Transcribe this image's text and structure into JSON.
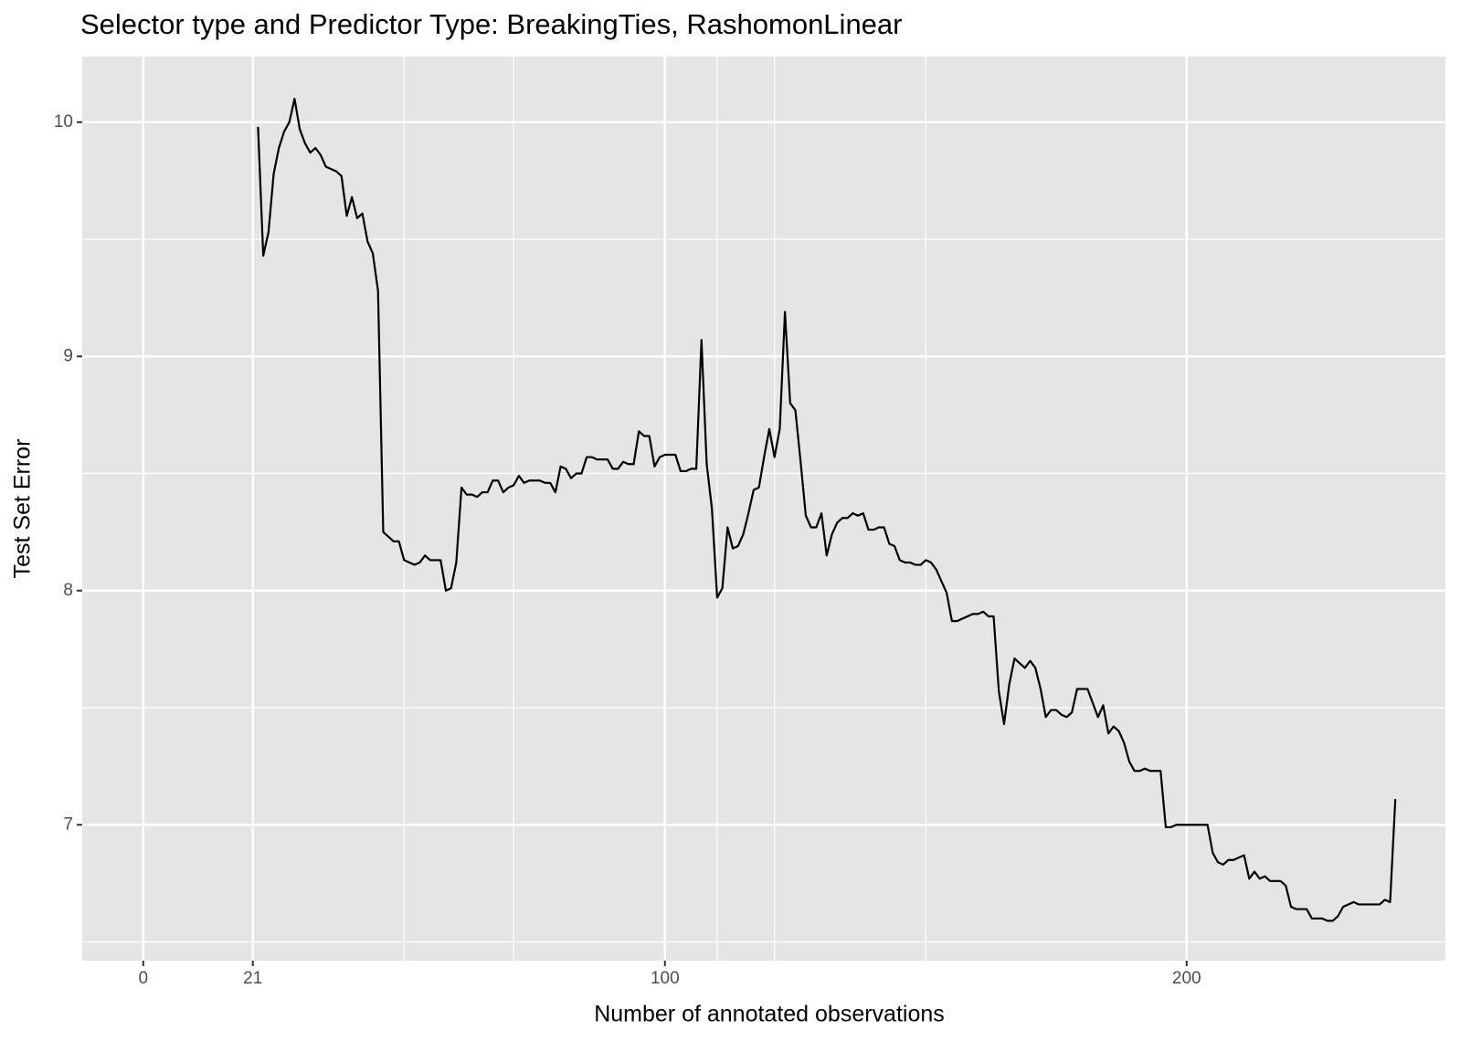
{
  "chart_data": {
    "type": "line",
    "title": "Selector type and Predictor Type: BreakingTies, RashomonLinear",
    "x_label": "Number of annotated observations",
    "y_label": "Test Set Error",
    "color": "#000000",
    "grid": true,
    "xlim": [
      -11.7,
      249.6
    ],
    "ylim": [
      6.42,
      10.28
    ],
    "xticks": [
      0,
      21,
      100,
      200
    ],
    "x_minor_grid": [
      50,
      71,
      110,
      121,
      150
    ],
    "yticks": [
      7,
      8,
      9,
      10
    ],
    "y_minor_grid": [
      6.5,
      7.5,
      8.5,
      9.5
    ],
    "x": [
      22,
      23,
      24,
      25,
      26,
      27,
      28,
      29,
      30,
      31,
      32,
      33,
      34,
      35,
      36,
      37,
      38,
      39,
      40,
      41,
      42,
      43,
      44,
      45,
      46,
      47,
      48,
      49,
      50,
      51,
      52,
      53,
      54,
      55,
      56,
      57,
      58,
      59,
      60,
      61,
      62,
      63,
      64,
      65,
      66,
      67,
      68,
      69,
      70,
      71,
      72,
      73,
      74,
      75,
      76,
      77,
      78,
      79,
      80,
      81,
      82,
      83,
      84,
      85,
      86,
      87,
      88,
      89,
      90,
      91,
      92,
      93,
      94,
      95,
      96,
      97,
      98,
      99,
      100,
      101,
      102,
      103,
      104,
      105,
      106,
      107,
      108,
      109,
      110,
      111,
      112,
      113,
      114,
      115,
      116,
      117,
      118,
      119,
      120,
      121,
      122,
      123,
      124,
      125,
      126,
      127,
      128,
      129,
      130,
      131,
      132,
      133,
      134,
      135,
      136,
      137,
      138,
      139,
      140,
      141,
      142,
      143,
      144,
      145,
      146,
      147,
      148,
      149,
      150,
      151,
      152,
      153,
      154,
      155,
      156,
      157,
      158,
      159,
      160,
      161,
      162,
      163,
      164,
      165,
      166,
      167,
      168,
      169,
      170,
      171,
      172,
      173,
      174,
      175,
      176,
      177,
      178,
      179,
      180,
      181,
      182,
      183,
      184,
      185,
      186,
      187,
      188,
      189,
      190,
      191,
      192,
      193,
      194,
      195,
      196,
      197,
      198,
      199,
      200,
      201,
      202,
      203,
      204,
      205,
      206,
      207,
      208,
      209,
      210,
      211,
      212,
      213,
      214,
      215,
      216,
      217,
      218,
      219,
      220,
      221,
      222,
      223,
      224,
      225,
      226,
      227,
      228,
      229,
      230,
      231,
      232,
      233,
      234,
      235,
      236,
      237,
      238,
      239,
      240
    ],
    "values": [
      9.98,
      9.43,
      9.53,
      9.78,
      9.89,
      9.96,
      10.0,
      10.1,
      9.97,
      9.91,
      9.87,
      9.89,
      9.86,
      9.81,
      9.8,
      9.79,
      9.77,
      9.6,
      9.68,
      9.59,
      9.61,
      9.49,
      9.44,
      9.28,
      8.25,
      8.23,
      8.21,
      8.21,
      8.13,
      8.12,
      8.11,
      8.12,
      8.15,
      8.13,
      8.13,
      8.13,
      8,
      8.01,
      8.12,
      8.44,
      8.41,
      8.41,
      8.4,
      8.42,
      8.42,
      8.47,
      8.47,
      8.42,
      8.44,
      8.45,
      8.49,
      8.46,
      8.47,
      8.47,
      8.47,
      8.46,
      8.46,
      8.42,
      8.53,
      8.52,
      8.48,
      8.5,
      8.5,
      8.57,
      8.57,
      8.56,
      8.56,
      8.56,
      8.52,
      8.52,
      8.55,
      8.54,
      8.54,
      8.68,
      8.66,
      8.66,
      8.53,
      8.57,
      8.58,
      8.58,
      8.58,
      8.51,
      8.51,
      8.52,
      8.52,
      9.07,
      8.54,
      8.35,
      7.97,
      8.01,
      8.27,
      8.18,
      8.19,
      8.24,
      8.33,
      8.43,
      8.44,
      8.57,
      8.69,
      8.57,
      8.69,
      9.19,
      8.8,
      8.77,
      8.55,
      8.32,
      8.27,
      8.27,
      8.33,
      8.15,
      8.24,
      8.29,
      8.31,
      8.31,
      8.33,
      8.32,
      8.33,
      8.26,
      8.26,
      8.27,
      8.27,
      8.2,
      8.19,
      8.13,
      8.12,
      8.12,
      8.11,
      8.11,
      8.13,
      8.12,
      8.09,
      8.04,
      7.99,
      7.87,
      7.87,
      7.88,
      7.89,
      7.9,
      7.9,
      7.91,
      7.89,
      7.89,
      7.57,
      7.43,
      7.6,
      7.71,
      7.69,
      7.67,
      7.7,
      7.67,
      7.58,
      7.46,
      7.49,
      7.49,
      7.47,
      7.46,
      7.48,
      7.58,
      7.58,
      7.58,
      7.52,
      7.46,
      7.51,
      7.39,
      7.42,
      7.4,
      7.35,
      7.27,
      7.23,
      7.23,
      7.24,
      7.23,
      7.23,
      7.23,
      6.99,
      6.99,
      7,
      7,
      7,
      7,
      7,
      7,
      7,
      6.88,
      6.84,
      6.83,
      6.85,
      6.85,
      6.86,
      6.87,
      6.77,
      6.8,
      6.77,
      6.78,
      6.76,
      6.76,
      6.76,
      6.74,
      6.65,
      6.64,
      6.64,
      6.64,
      6.6,
      6.6,
      6.6,
      6.59,
      6.59,
      6.61,
      6.65,
      6.66,
      6.67,
      6.66,
      6.66,
      6.66,
      6.66,
      6.66,
      6.68,
      6.67,
      7.11
    ]
  }
}
